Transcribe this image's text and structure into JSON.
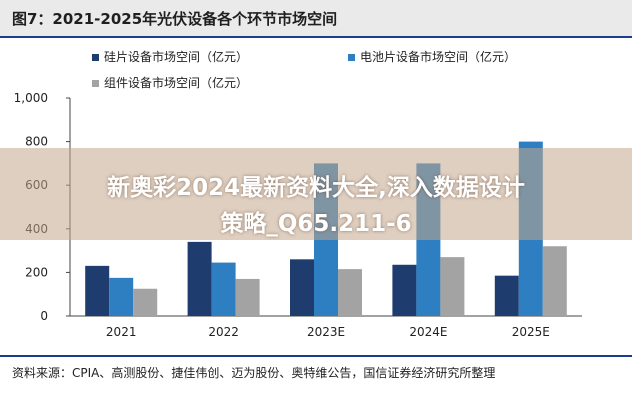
{
  "figure": {
    "title": "图7：2021-2025年光伏设备各个环节市场空间",
    "source": "资料来源：CPIA、高测股份、捷佳伟创、迈为股份、奥特维公告，国信证券经济研究所整理"
  },
  "overlay": {
    "line1": "新奥彩2024最新资料大全,深入数据设计",
    "line2": "策略_Q65.211-6"
  },
  "colors": {
    "series_silicon": "#1f3c6e",
    "series_cell": "#2e7fc1",
    "series_module": "#a3a3a3",
    "rule": "#1f3c88"
  },
  "chart_data": {
    "type": "bar",
    "title": "图7：2021-2025年光伏设备各个环节市场空间",
    "categories": [
      "2021",
      "2022",
      "2023E",
      "2024E",
      "2025E"
    ],
    "series": [
      {
        "name": "硅片设备市场空间（亿元）",
        "values": [
          230,
          340,
          260,
          235,
          185
        ]
      },
      {
        "name": "电池片设备市场空间（亿元）",
        "values": [
          175,
          245,
          700,
          700,
          800
        ]
      },
      {
        "name": "组件设备市场空间（亿元）",
        "values": [
          125,
          170,
          215,
          270,
          320
        ]
      }
    ],
    "yticks": [
      "0",
      "200",
      "400",
      "600",
      "800",
      "1,000"
    ],
    "ylim": [
      0,
      1000
    ],
    "grid": false,
    "legend": "top-left, two columns"
  }
}
